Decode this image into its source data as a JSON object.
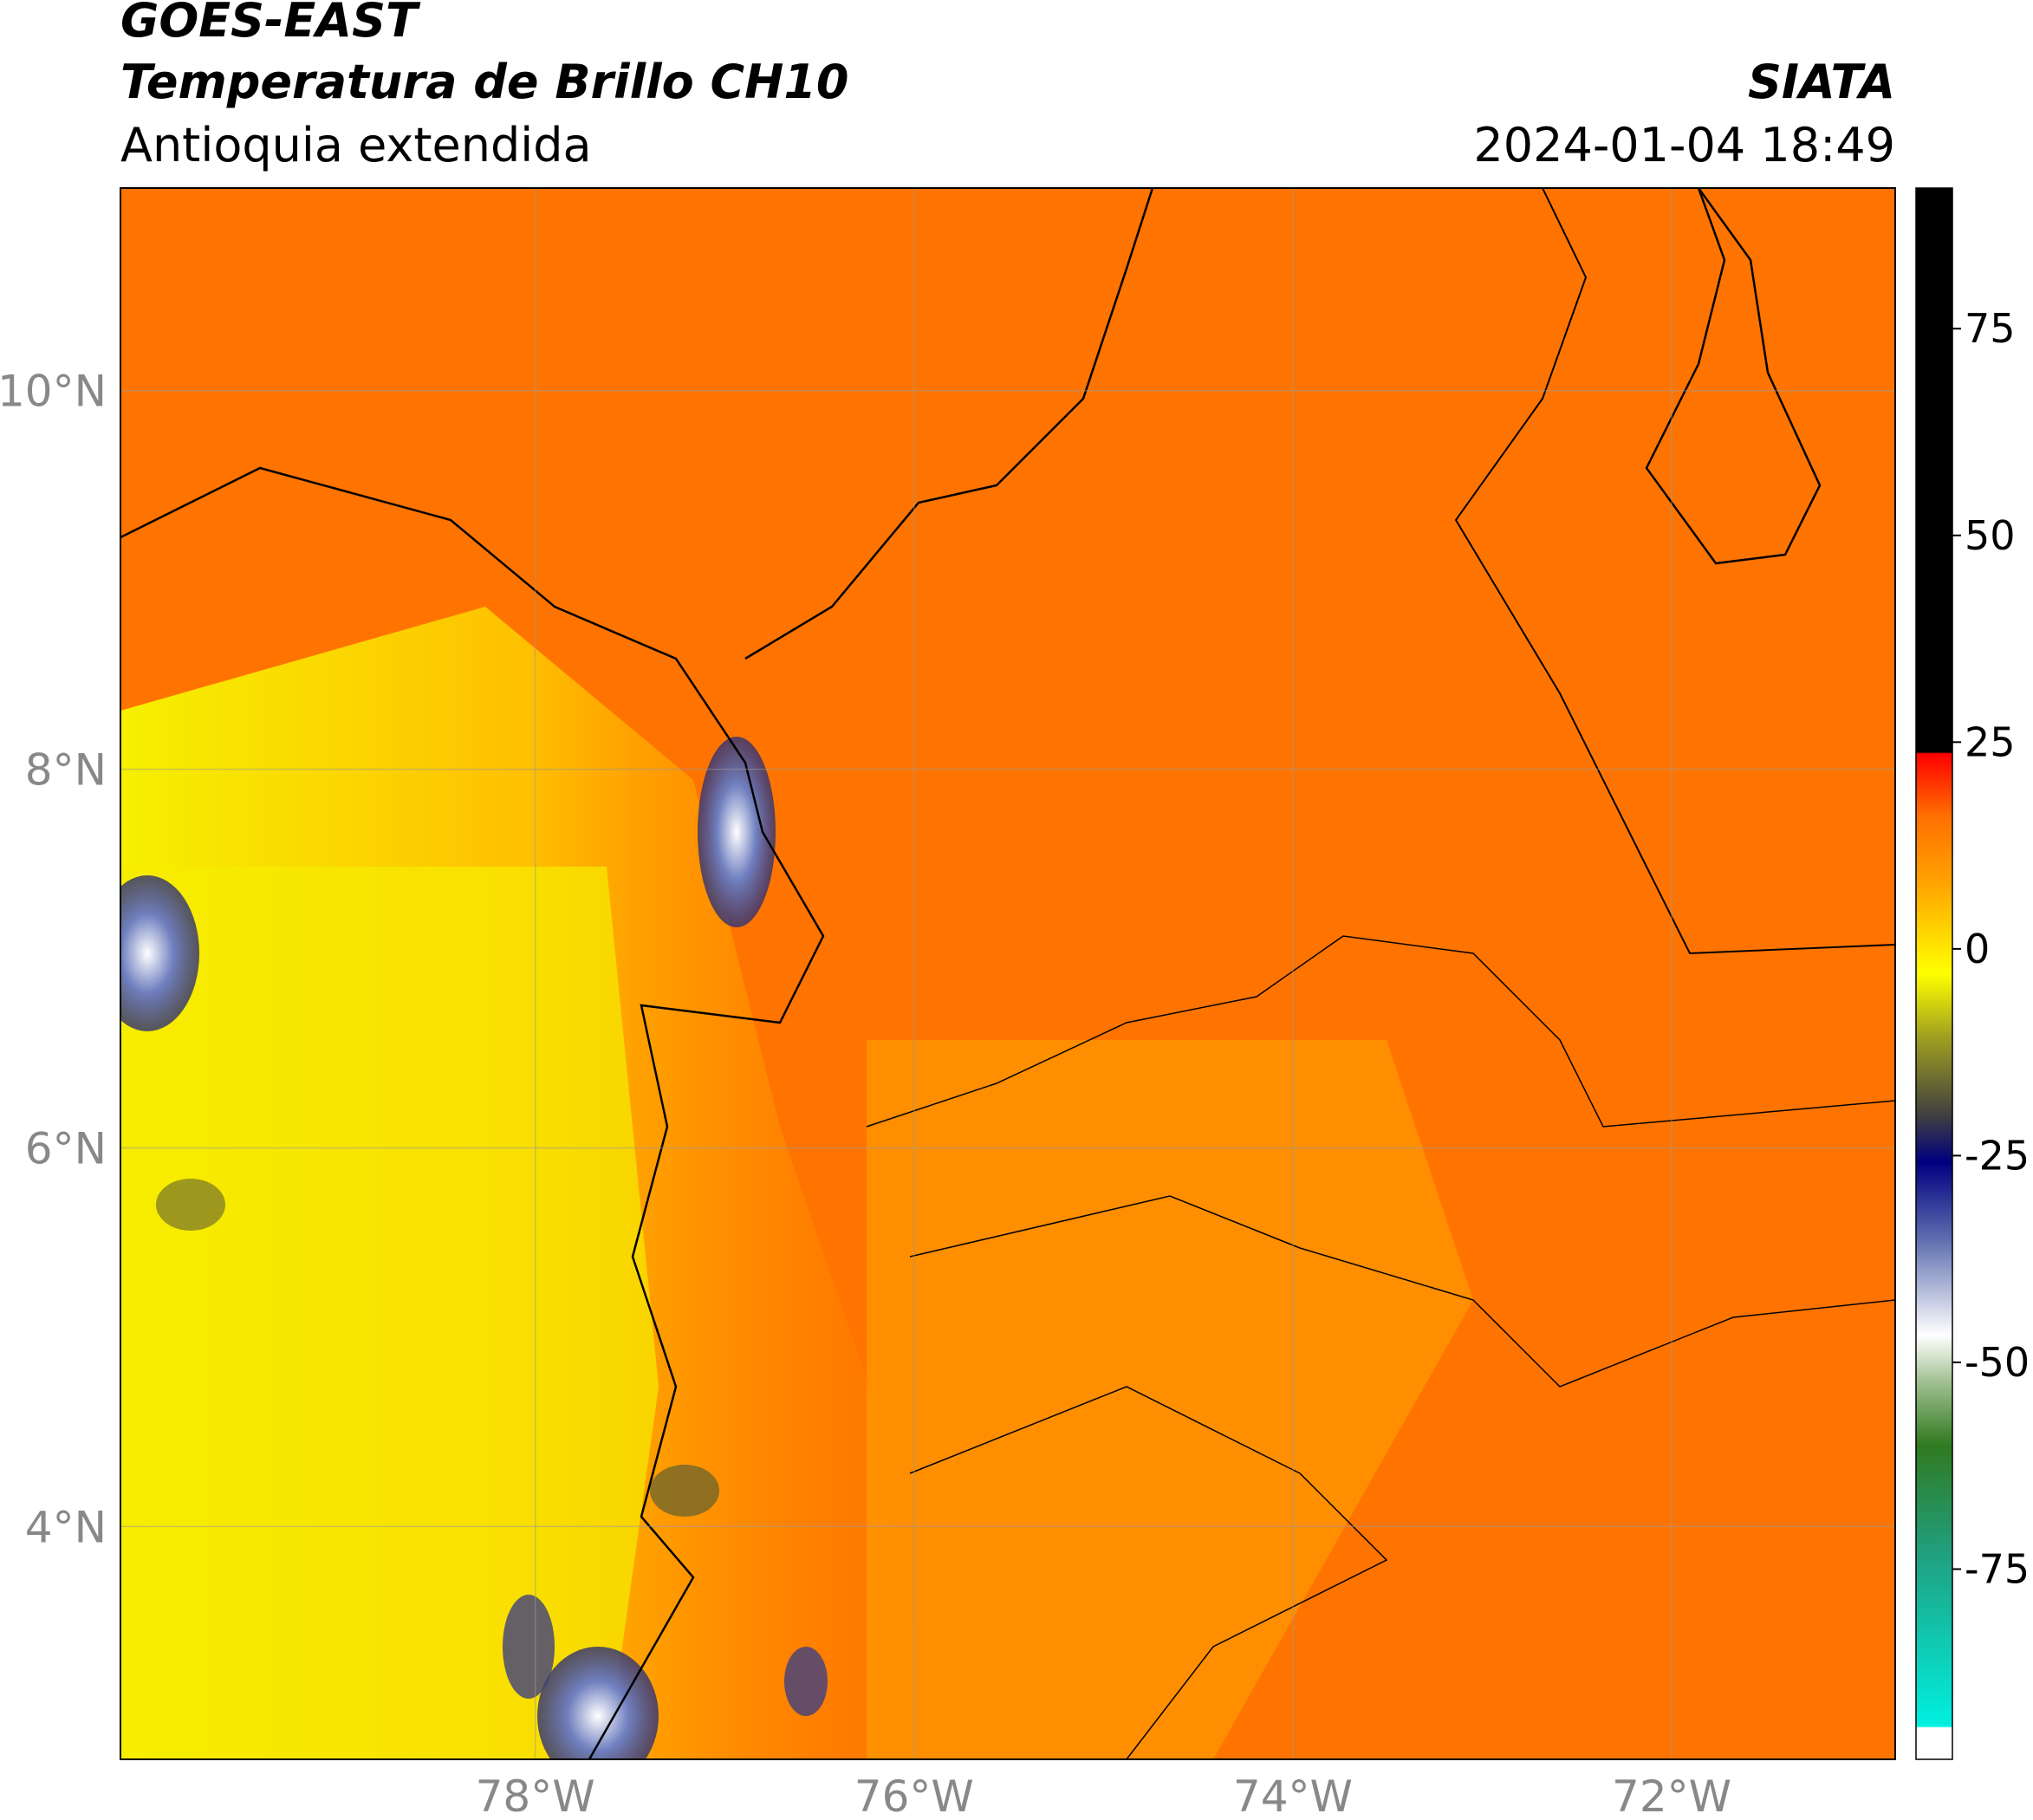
{
  "header": {
    "title": "GOES-EAST",
    "subtitle": "Temperatura de Brillo CH10",
    "region": "Antioquia extendida",
    "source": "SIATA",
    "datetime": "2024-01-04 18:49"
  },
  "map": {
    "xlim": [
      -80.19,
      -70.82
    ],
    "ylim": [
      2.77,
      11.07
    ],
    "xticks": [
      {
        "value": -78,
        "label": "78°W"
      },
      {
        "value": -76,
        "label": "76°W"
      },
      {
        "value": -74,
        "label": "74°W"
      },
      {
        "value": -72,
        "label": "72°W"
      }
    ],
    "yticks": [
      {
        "value": 4,
        "label": "4°N"
      },
      {
        "value": 6,
        "label": "6°N"
      },
      {
        "value": 8,
        "label": "8°N"
      },
      {
        "value": 10,
        "label": "10°N"
      }
    ],
    "grid": true
  },
  "colorbar": {
    "lim": [
      -98,
      92
    ],
    "ticks": [
      -75,
      -50,
      -25,
      0,
      25,
      50,
      75
    ]
  }
}
